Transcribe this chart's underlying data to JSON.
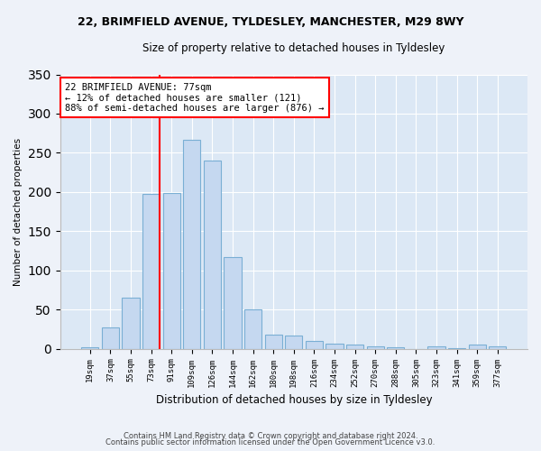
{
  "title_line1": "22, BRIMFIELD AVENUE, TYLDESLEY, MANCHESTER, M29 8WY",
  "title_line2": "Size of property relative to detached houses in Tyldesley",
  "xlabel": "Distribution of detached houses by size in Tyldesley",
  "ylabel": "Number of detached properties",
  "bar_color": "#c5d8f0",
  "bar_edge_color": "#7aafd4",
  "categories": [
    "19sqm",
    "37sqm",
    "55sqm",
    "73sqm",
    "91sqm",
    "109sqm",
    "126sqm",
    "144sqm",
    "162sqm",
    "180sqm",
    "198sqm",
    "216sqm",
    "234sqm",
    "252sqm",
    "270sqm",
    "288sqm",
    "305sqm",
    "323sqm",
    "341sqm",
    "359sqm",
    "377sqm"
  ],
  "values": [
    2,
    27,
    65,
    198,
    199,
    267,
    240,
    117,
    50,
    18,
    17,
    10,
    6,
    5,
    3,
    2,
    0,
    3,
    1,
    5,
    3
  ],
  "ylim": [
    0,
    350
  ],
  "yticks": [
    0,
    50,
    100,
    150,
    200,
    250,
    300,
    350
  ],
  "red_line_bar_index": 3,
  "annotation_text": "22 BRIMFIELD AVENUE: 77sqm\n← 12% of detached houses are smaller (121)\n88% of semi-detached houses are larger (876) →",
  "footnote1": "Contains HM Land Registry data © Crown copyright and database right 2024.",
  "footnote2": "Contains public sector information licensed under the Open Government Licence v3.0.",
  "background_color": "#eef2f9",
  "plot_bg_color": "#dce8f5",
  "grid_color": "#ffffff"
}
